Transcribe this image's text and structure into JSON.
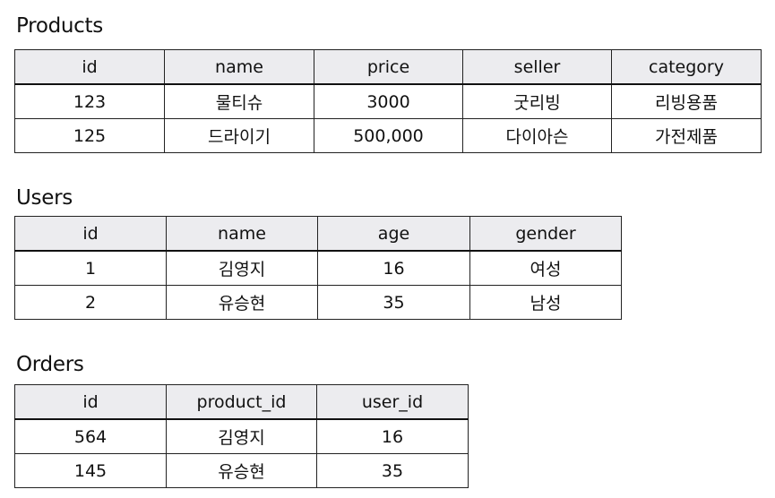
{
  "products": {
    "title": "Products",
    "columns": [
      "id",
      "name",
      "price",
      "seller",
      "category"
    ],
    "rows": [
      [
        "123",
        "물티슈",
        "3000",
        "굿리빙",
        "리빙용품"
      ],
      [
        "125",
        "드라이기",
        "500,000",
        "다이아슨",
        "가전제품"
      ]
    ]
  },
  "users": {
    "title": "Users",
    "columns": [
      "id",
      "name",
      "age",
      "gender"
    ],
    "rows": [
      [
        "1",
        "김영지",
        "16",
        "여성"
      ],
      [
        "2",
        "유승현",
        "35",
        "남성"
      ]
    ]
  },
  "orders": {
    "title": "Orders",
    "columns": [
      "id",
      "product_id",
      "user_id"
    ],
    "rows": [
      [
        "564",
        "김영지",
        "16"
      ],
      [
        "145",
        "유승현",
        "35"
      ]
    ]
  }
}
